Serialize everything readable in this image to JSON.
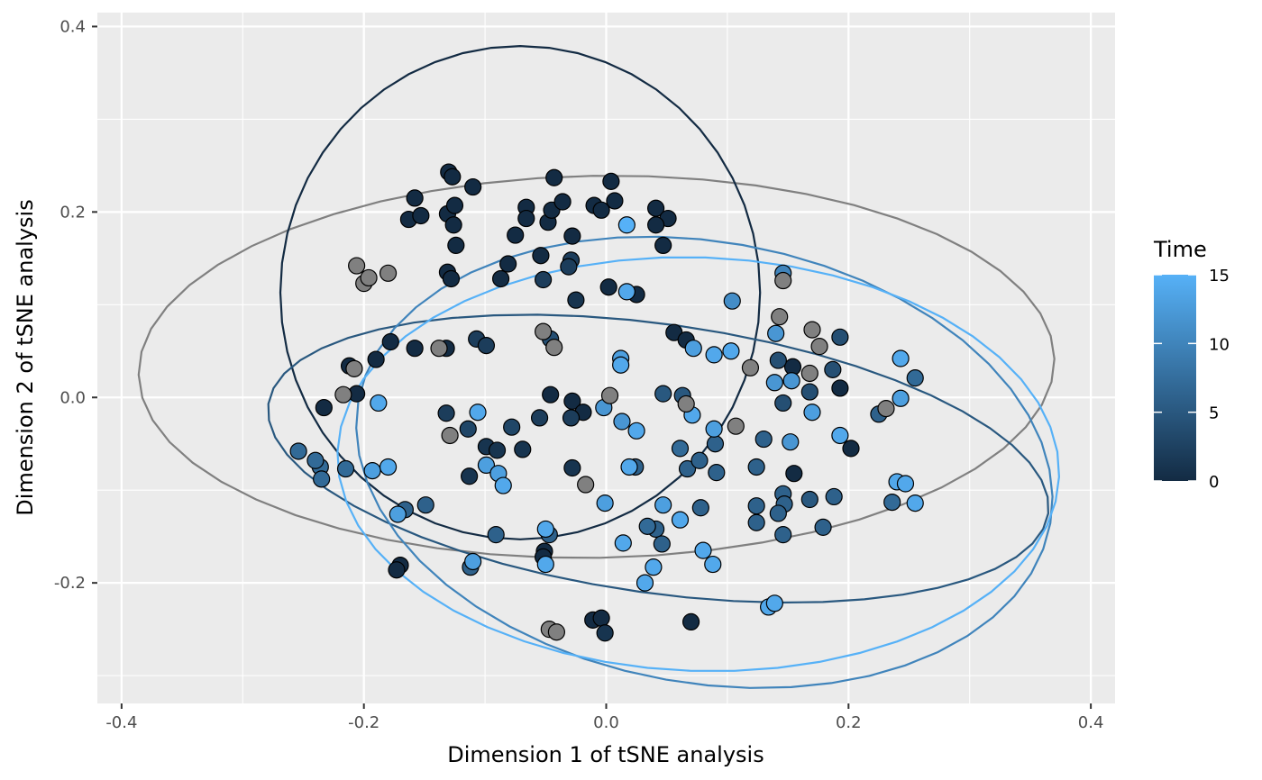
{
  "chart_data": {
    "type": "scatter",
    "title": "",
    "xlabel": "Dimension 1 of tSNE analysis",
    "ylabel": "Dimension 2 of tSNE analysis",
    "xlim": [
      -0.42,
      0.42
    ],
    "ylim": [
      -0.33,
      0.415
    ],
    "xticks": [
      -0.4,
      -0.2,
      0.0,
      0.2,
      0.4
    ],
    "xtick_labels": [
      "-0.4",
      "-0.2",
      "0.0",
      "0.2",
      "0.4"
    ],
    "yticks": [
      -0.2,
      0.0,
      0.2,
      0.4
    ],
    "ytick_labels": [
      "-0.2",
      "0.0",
      "0.2",
      "0.4"
    ],
    "grid": true,
    "legend": {
      "title": "Time",
      "position": "right",
      "type": "colorbar",
      "range": [
        0,
        15
      ],
      "ticks": [
        0,
        5,
        10,
        15
      ],
      "tick_labels": [
        "0",
        "5",
        "10",
        "15"
      ],
      "low_color": "#132B43",
      "high_color": "#56B1F7",
      "na_color": "#808080"
    },
    "colors": {
      "panel_background": "#EBEBEB",
      "grid_major": "#FFFFFF",
      "point_outline": "#000000",
      "na_point": "#808080"
    },
    "ellipses": [
      {
        "time": null,
        "cx": -0.008,
        "cy": 0.033,
        "rx": 0.378,
        "ry": 0.206,
        "angle": -1
      },
      {
        "time": 0,
        "cx": -0.071,
        "cy": 0.113,
        "rx": 0.198,
        "ry": 0.266,
        "angle": 0
      },
      {
        "time": 5,
        "cx": 0.043,
        "cy": -0.066,
        "rx": 0.325,
        "ry": 0.145,
        "angle": 8
      },
      {
        "time": 10,
        "cx": 0.081,
        "cy": -0.07,
        "rx": 0.29,
        "ry": 0.238,
        "angle": 10
      },
      {
        "time": 15,
        "cx": 0.076,
        "cy": -0.072,
        "rx": 0.298,
        "ry": 0.223,
        "angle": 2
      }
    ],
    "points": [
      {
        "x": -0.13,
        "y": 0.243,
        "t": 0
      },
      {
        "x": -0.127,
        "y": 0.238,
        "t": 0
      },
      {
        "x": -0.158,
        "y": 0.215,
        "t": 0
      },
      {
        "x": -0.163,
        "y": 0.192,
        "t": 0
      },
      {
        "x": -0.153,
        "y": 0.196,
        "t": 0
      },
      {
        "x": -0.131,
        "y": 0.198,
        "t": 0
      },
      {
        "x": -0.125,
        "y": 0.207,
        "t": 0
      },
      {
        "x": -0.126,
        "y": 0.186,
        "t": 0
      },
      {
        "x": -0.11,
        "y": 0.227,
        "t": 0
      },
      {
        "x": -0.124,
        "y": 0.164,
        "t": 0
      },
      {
        "x": -0.043,
        "y": 0.237,
        "t": 0
      },
      {
        "x": -0.066,
        "y": 0.205,
        "t": 0
      },
      {
        "x": -0.066,
        "y": 0.193,
        "t": 0
      },
      {
        "x": -0.048,
        "y": 0.189,
        "t": 0
      },
      {
        "x": -0.045,
        "y": 0.202,
        "t": 0
      },
      {
        "x": -0.036,
        "y": 0.211,
        "t": 0
      },
      {
        "x": -0.01,
        "y": 0.207,
        "t": 0
      },
      {
        "x": -0.004,
        "y": 0.202,
        "t": 0
      },
      {
        "x": 0.004,
        "y": 0.233,
        "t": 0
      },
      {
        "x": 0.007,
        "y": 0.212,
        "t": 0
      },
      {
        "x": -0.075,
        "y": 0.175,
        "t": 0
      },
      {
        "x": -0.028,
        "y": 0.174,
        "t": 0
      },
      {
        "x": 0.041,
        "y": 0.204,
        "t": 0
      },
      {
        "x": 0.051,
        "y": 0.193,
        "t": 0
      },
      {
        "x": 0.041,
        "y": 0.186,
        "t": 0
      },
      {
        "x": 0.047,
        "y": 0.164,
        "t": 0
      },
      {
        "x": -0.131,
        "y": 0.135,
        "t": 0
      },
      {
        "x": -0.128,
        "y": 0.128,
        "t": 0
      },
      {
        "x": -0.087,
        "y": 0.128,
        "t": 0
      },
      {
        "x": -0.081,
        "y": 0.144,
        "t": 0
      },
      {
        "x": -0.054,
        "y": 0.153,
        "t": 0
      },
      {
        "x": -0.029,
        "y": 0.148,
        "t": 2
      },
      {
        "x": -0.031,
        "y": 0.141,
        "t": 2
      },
      {
        "x": -0.052,
        "y": 0.127,
        "t": 2
      },
      {
        "x": -0.025,
        "y": 0.105,
        "t": 1
      },
      {
        "x": 0.002,
        "y": 0.119,
        "t": 0
      },
      {
        "x": 0.025,
        "y": 0.111,
        "t": 0
      },
      {
        "x": -0.178,
        "y": 0.06,
        "t": 0
      },
      {
        "x": -0.158,
        "y": 0.053,
        "t": 0
      },
      {
        "x": -0.132,
        "y": 0.053,
        "t": 0
      },
      {
        "x": -0.212,
        "y": 0.034,
        "t": 0
      },
      {
        "x": -0.19,
        "y": 0.041,
        "t": 0
      },
      {
        "x": -0.107,
        "y": 0.063,
        "t": 2
      },
      {
        "x": -0.099,
        "y": 0.056,
        "t": 2
      },
      {
        "x": -0.046,
        "y": 0.063,
        "t": 4
      },
      {
        "x": -0.206,
        "y": 0.004,
        "t": 0
      },
      {
        "x": -0.233,
        "y": -0.011,
        "t": 0
      },
      {
        "x": -0.132,
        "y": -0.017,
        "t": 2
      },
      {
        "x": -0.055,
        "y": -0.022,
        "t": 2
      },
      {
        "x": -0.046,
        "y": 0.003,
        "t": 0
      },
      {
        "x": -0.028,
        "y": -0.004,
        "t": 0
      },
      {
        "x": -0.019,
        "y": -0.016,
        "t": 0
      },
      {
        "x": -0.029,
        "y": -0.022,
        "t": 2
      },
      {
        "x": -0.078,
        "y": -0.032,
        "t": 3
      },
      {
        "x": -0.114,
        "y": -0.034,
        "t": 3
      },
      {
        "x": -0.099,
        "y": -0.053,
        "t": 1
      },
      {
        "x": -0.09,
        "y": -0.057,
        "t": 1
      },
      {
        "x": -0.069,
        "y": -0.056,
        "t": 1
      },
      {
        "x": -0.028,
        "y": -0.076,
        "t": 1
      },
      {
        "x": -0.113,
        "y": -0.085,
        "t": 1
      },
      {
        "x": 0.056,
        "y": 0.07,
        "t": 0
      },
      {
        "x": 0.066,
        "y": 0.062,
        "t": 0
      },
      {
        "x": 0.154,
        "y": 0.033,
        "t": 0
      },
      {
        "x": 0.193,
        "y": 0.01,
        "t": 0
      },
      {
        "x": 0.202,
        "y": -0.055,
        "t": 0
      },
      {
        "x": 0.155,
        "y": -0.082,
        "t": 0
      },
      {
        "x": 0.07,
        "y": -0.242,
        "t": 0
      },
      {
        "x": -0.011,
        "y": -0.24,
        "t": 0
      },
      {
        "x": -0.004,
        "y": -0.238,
        "t": 0
      },
      {
        "x": -0.001,
        "y": -0.254,
        "t": 1
      },
      {
        "x": -0.17,
        "y": -0.181,
        "t": 0
      },
      {
        "x": -0.173,
        "y": -0.186,
        "t": 0
      },
      {
        "x": -0.051,
        "y": -0.166,
        "t": 0
      },
      {
        "x": -0.052,
        "y": -0.172,
        "t": 0
      },
      {
        "x": 0.193,
        "y": 0.065,
        "t": 4
      },
      {
        "x": 0.187,
        "y": 0.03,
        "t": 4
      },
      {
        "x": 0.168,
        "y": 0.006,
        "t": 4
      },
      {
        "x": 0.146,
        "y": -0.006,
        "t": 4
      },
      {
        "x": 0.142,
        "y": 0.04,
        "t": 4
      },
      {
        "x": 0.13,
        "y": -0.045,
        "t": 6
      },
      {
        "x": 0.124,
        "y": -0.075,
        "t": 6
      },
      {
        "x": 0.146,
        "y": -0.104,
        "t": 6
      },
      {
        "x": 0.147,
        "y": -0.115,
        "t": 6
      },
      {
        "x": 0.168,
        "y": -0.11,
        "t": 5
      },
      {
        "x": 0.188,
        "y": -0.107,
        "t": 6
      },
      {
        "x": 0.179,
        "y": -0.14,
        "t": 6
      },
      {
        "x": 0.146,
        "y": -0.148,
        "t": 6
      },
      {
        "x": 0.124,
        "y": -0.117,
        "t": 6
      },
      {
        "x": 0.124,
        "y": -0.135,
        "t": 6
      },
      {
        "x": 0.142,
        "y": -0.125,
        "t": 6
      },
      {
        "x": 0.225,
        "y": -0.018,
        "t": 6
      },
      {
        "x": 0.255,
        "y": 0.021,
        "t": 7
      },
      {
        "x": 0.236,
        "y": -0.113,
        "t": 7
      },
      {
        "x": 0.047,
        "y": 0.004,
        "t": 5
      },
      {
        "x": 0.063,
        "y": 0.002,
        "t": 5
      },
      {
        "x": 0.061,
        "y": -0.055,
        "t": 7
      },
      {
        "x": 0.067,
        "y": -0.077,
        "t": 6
      },
      {
        "x": 0.077,
        "y": -0.068,
        "t": 6
      },
      {
        "x": 0.09,
        "y": -0.05,
        "t": 6
      },
      {
        "x": 0.091,
        "y": -0.081,
        "t": 6
      },
      {
        "x": 0.078,
        "y": -0.119,
        "t": 6
      },
      {
        "x": 0.041,
        "y": -0.142,
        "t": 6
      },
      {
        "x": 0.046,
        "y": -0.158,
        "t": 6
      },
      {
        "x": 0.034,
        "y": -0.139,
        "t": 7
      },
      {
        "x": 0.024,
        "y": -0.075,
        "t": 6
      },
      {
        "x": -0.091,
        "y": -0.148,
        "t": 6
      },
      {
        "x": -0.047,
        "y": -0.148,
        "t": 6
      },
      {
        "x": -0.112,
        "y": -0.183,
        "t": 6
      },
      {
        "x": -0.149,
        "y": -0.116,
        "t": 6
      },
      {
        "x": -0.166,
        "y": -0.121,
        "t": 6
      },
      {
        "x": -0.215,
        "y": -0.077,
        "t": 7
      },
      {
        "x": -0.236,
        "y": -0.075,
        "t": 7
      },
      {
        "x": -0.24,
        "y": -0.068,
        "t": 7
      },
      {
        "x": -0.235,
        "y": -0.088,
        "t": 7
      },
      {
        "x": -0.254,
        "y": -0.058,
        "t": 7
      },
      {
        "x": 0.104,
        "y": 0.104,
        "t": 11
      },
      {
        "x": 0.146,
        "y": 0.134,
        "t": 10
      },
      {
        "x": 0.14,
        "y": 0.069,
        "t": 12
      },
      {
        "x": 0.139,
        "y": 0.016,
        "t": 12
      },
      {
        "x": 0.153,
        "y": 0.018,
        "t": 12
      },
      {
        "x": 0.152,
        "y": -0.048,
        "t": 12
      },
      {
        "x": 0.17,
        "y": -0.016,
        "t": 13
      },
      {
        "x": 0.193,
        "y": -0.041,
        "t": 14
      },
      {
        "x": 0.243,
        "y": 0.042,
        "t": 14
      },
      {
        "x": 0.243,
        "y": -0.001,
        "t": 13
      },
      {
        "x": 0.24,
        "y": -0.091,
        "t": 14
      },
      {
        "x": 0.247,
        "y": -0.093,
        "t": 14
      },
      {
        "x": 0.255,
        "y": -0.114,
        "t": 14
      },
      {
        "x": 0.134,
        "y": -0.226,
        "t": 14
      },
      {
        "x": 0.139,
        "y": -0.222,
        "t": 14
      },
      {
        "x": 0.089,
        "y": 0.046,
        "t": 14
      },
      {
        "x": 0.103,
        "y": 0.05,
        "t": 14
      },
      {
        "x": 0.072,
        "y": 0.053,
        "t": 13
      },
      {
        "x": 0.012,
        "y": 0.042,
        "t": 13
      },
      {
        "x": 0.012,
        "y": 0.035,
        "t": 14
      },
      {
        "x": 0.017,
        "y": 0.186,
        "t": 15
      },
      {
        "x": 0.017,
        "y": 0.114,
        "t": 14
      },
      {
        "x": -0.099,
        "y": -0.073,
        "t": 13
      },
      {
        "x": -0.089,
        "y": -0.082,
        "t": 13
      },
      {
        "x": -0.085,
        "y": -0.095,
        "t": 14
      },
      {
        "x": -0.106,
        "y": -0.016,
        "t": 14
      },
      {
        "x": -0.193,
        "y": -0.079,
        "t": 13
      },
      {
        "x": -0.18,
        "y": -0.075,
        "t": 14
      },
      {
        "x": -0.188,
        "y": -0.006,
        "t": 14
      },
      {
        "x": -0.172,
        "y": -0.126,
        "t": 13
      },
      {
        "x": -0.11,
        "y": -0.177,
        "t": 13
      },
      {
        "x": -0.05,
        "y": -0.18,
        "t": 14
      },
      {
        "x": -0.05,
        "y": -0.142,
        "t": 14
      },
      {
        "x": 0.014,
        "y": -0.157,
        "t": 14
      },
      {
        "x": 0.032,
        "y": -0.2,
        "t": 14
      },
      {
        "x": 0.039,
        "y": -0.183,
        "t": 14
      },
      {
        "x": 0.08,
        "y": -0.165,
        "t": 14
      },
      {
        "x": 0.088,
        "y": -0.18,
        "t": 14
      },
      {
        "x": 0.047,
        "y": -0.116,
        "t": 13
      },
      {
        "x": 0.061,
        "y": -0.132,
        "t": 14
      },
      {
        "x": -0.001,
        "y": -0.114,
        "t": 13
      },
      {
        "x": 0.019,
        "y": -0.075,
        "t": 14
      },
      {
        "x": 0.013,
        "y": -0.026,
        "t": 12
      },
      {
        "x": 0.025,
        "y": -0.036,
        "t": 14
      },
      {
        "x": -0.002,
        "y": -0.011,
        "t": 12
      },
      {
        "x": 0.071,
        "y": -0.019,
        "t": 14
      },
      {
        "x": 0.089,
        "y": -0.034,
        "t": 13
      },
      {
        "x": -0.206,
        "y": 0.142,
        "t": null
      },
      {
        "x": -0.2,
        "y": 0.123,
        "t": null
      },
      {
        "x": -0.196,
        "y": 0.129,
        "t": null
      },
      {
        "x": -0.18,
        "y": 0.134,
        "t": null
      },
      {
        "x": -0.138,
        "y": 0.053,
        "t": null
      },
      {
        "x": -0.052,
        "y": 0.071,
        "t": null
      },
      {
        "x": -0.043,
        "y": 0.054,
        "t": null
      },
      {
        "x": -0.208,
        "y": 0.031,
        "t": null
      },
      {
        "x": -0.217,
        "y": 0.003,
        "t": null
      },
      {
        "x": 0.003,
        "y": 0.002,
        "t": null
      },
      {
        "x": -0.129,
        "y": -0.041,
        "t": null
      },
      {
        "x": -0.017,
        "y": -0.094,
        "t": null
      },
      {
        "x": 0.066,
        "y": -0.007,
        "t": null
      },
      {
        "x": 0.107,
        "y": -0.031,
        "t": null
      },
      {
        "x": 0.119,
        "y": 0.032,
        "t": null
      },
      {
        "x": 0.143,
        "y": 0.087,
        "t": null
      },
      {
        "x": 0.146,
        "y": 0.126,
        "t": null
      },
      {
        "x": 0.17,
        "y": 0.073,
        "t": null
      },
      {
        "x": 0.176,
        "y": 0.055,
        "t": null
      },
      {
        "x": 0.168,
        "y": 0.026,
        "t": null
      },
      {
        "x": 0.231,
        "y": -0.012,
        "t": null
      },
      {
        "x": -0.047,
        "y": -0.25,
        "t": null
      },
      {
        "x": -0.041,
        "y": -0.253,
        "t": null
      }
    ]
  }
}
